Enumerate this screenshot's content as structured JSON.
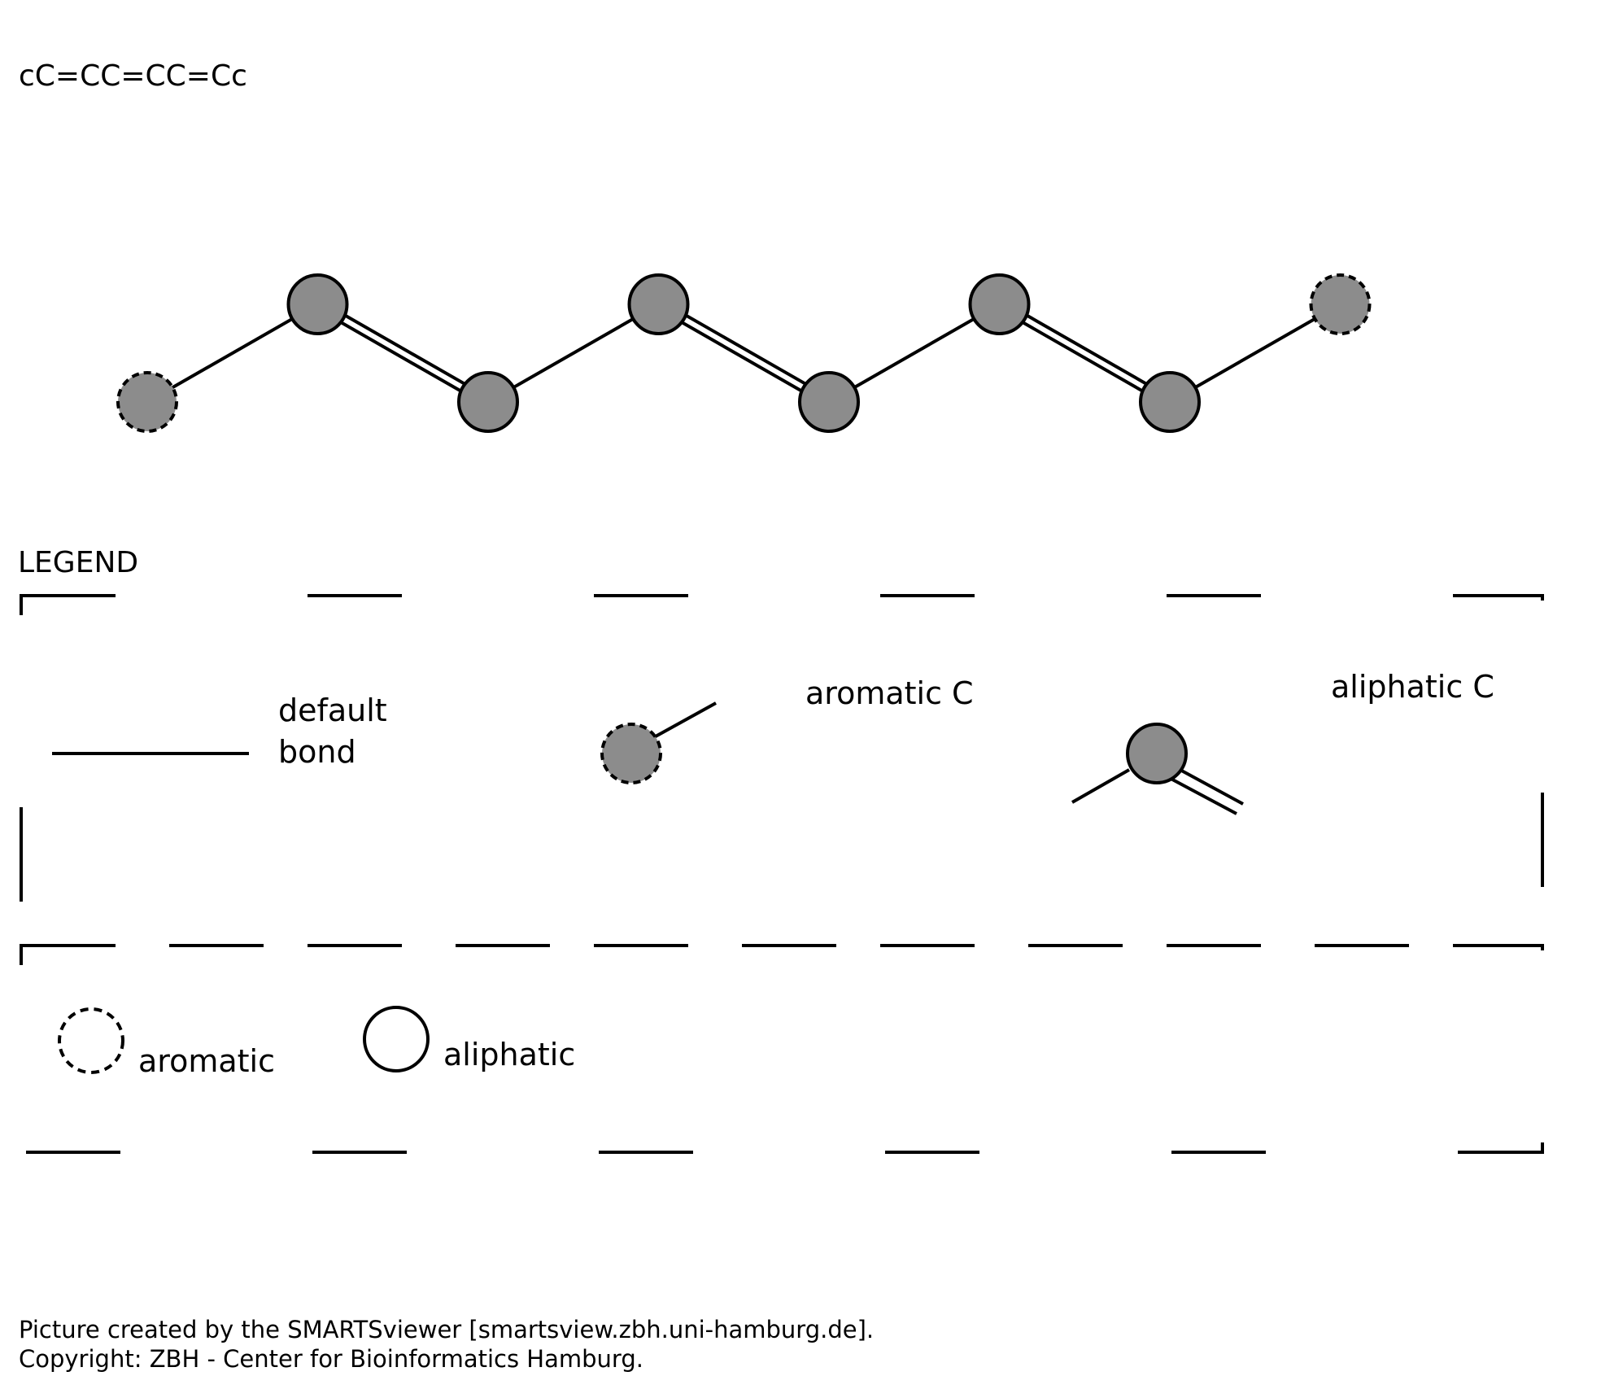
{
  "smarts": "cC=CC=CC=Cc",
  "molecule": {
    "atoms": [
      {
        "element": "C",
        "type": "aromatic"
      },
      {
        "element": "C",
        "type": "aliphatic"
      },
      {
        "element": "C",
        "type": "aliphatic"
      },
      {
        "element": "C",
        "type": "aliphatic"
      },
      {
        "element": "C",
        "type": "aliphatic"
      },
      {
        "element": "C",
        "type": "aliphatic"
      },
      {
        "element": "C",
        "type": "aliphatic"
      },
      {
        "element": "C",
        "type": "aromatic"
      }
    ],
    "bonds": [
      {
        "from": 0,
        "to": 1,
        "order": 1
      },
      {
        "from": 1,
        "to": 2,
        "order": 2
      },
      {
        "from": 2,
        "to": 3,
        "order": 1
      },
      {
        "from": 3,
        "to": 4,
        "order": 2
      },
      {
        "from": 4,
        "to": 5,
        "order": 1
      },
      {
        "from": 5,
        "to": 6,
        "order": 2
      },
      {
        "from": 6,
        "to": 7,
        "order": 1
      }
    ]
  },
  "legend": {
    "title": "LEGEND",
    "default_bond_line1": "default",
    "default_bond_line2": "bond",
    "aromatic_c_label": "aromatic C",
    "aliphatic_c_label": "aliphatic C",
    "aromatic_label": "aromatic",
    "aliphatic_label": "aliphatic"
  },
  "colors": {
    "atom_fill": "#8c8c8c",
    "stroke": "#000000",
    "background": "#ffffff"
  },
  "footer": {
    "line1": "Picture created by the SMARTSviewer [smartsview.zbh.uni-hamburg.de].",
    "line2": "Copyright: ZBH - Center for Bioinformatics Hamburg."
  }
}
